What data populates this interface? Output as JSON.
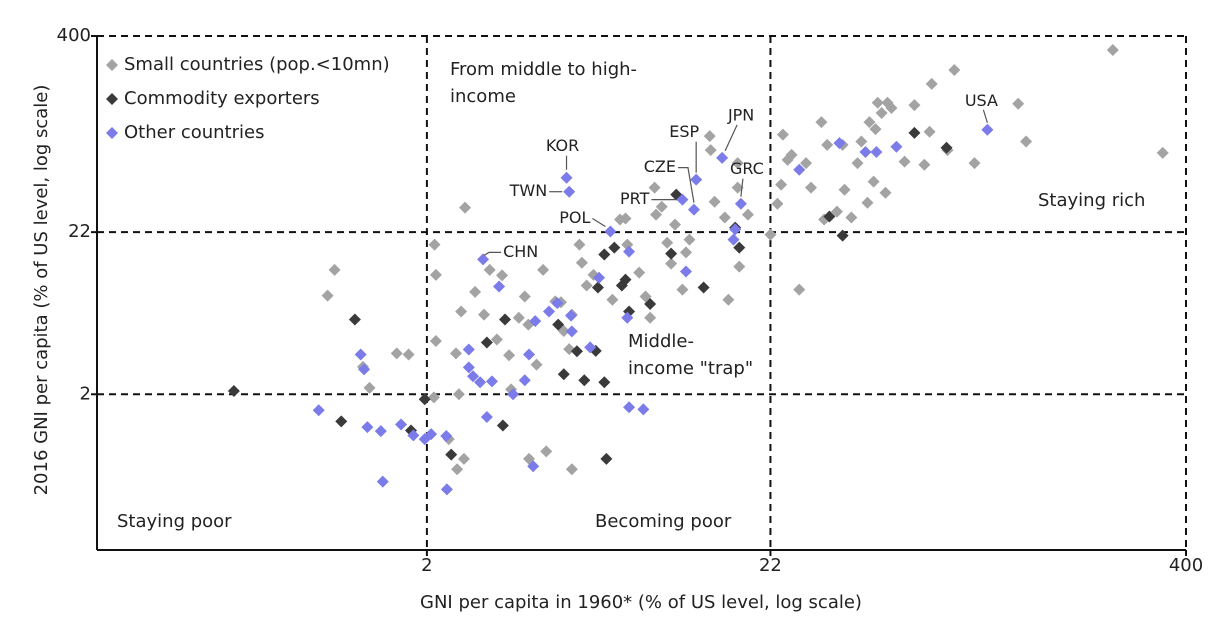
{
  "chart_data": {
    "type": "scatter",
    "xlabel": "GNI per capita in 1960* (% of US level, log scale)",
    "ylabel": "2016 GNI per capita (% of US level, log scale)",
    "xlim": [
      0.2,
      400
    ],
    "ylim": [
      0.2,
      400
    ],
    "xticks": [
      2,
      22,
      400
    ],
    "yticks": [
      2,
      22,
      400
    ],
    "xscale": "log",
    "yscale": "log",
    "grid": true,
    "legend": "upper left",
    "annotations": [
      [
        "From middle to high-",
        "income"
      ],
      [
        "Middle-",
        "income \"trap\""
      ],
      [
        "Staying rich"
      ],
      [
        "Staying poor"
      ],
      [
        "Becoming poor"
      ]
    ],
    "series": [
      {
        "name": "Small countries (pop.<10mn)",
        "color": "#a3a3a3",
        "x": [
          1.05,
          1.0,
          1.28,
          1.34,
          1.62,
          1.76,
          2.13,
          2.11,
          2.13,
          2.61,
          2.45,
          2.54,
          2.8,
          2.98,
          3.1,
          3.38,
          3.26,
          3.55,
          3.6,
          3.8,
          3.96,
          4.06,
          4.5,
          4.9,
          5.1,
          5.2,
          5.4,
          5.5,
          5.8,
          5.9,
          6.1,
          6.4,
          6.9,
          7.3,
          7.7,
          8.0,
          8.1,
          8.8,
          9.2,
          9.5,
          9.8,
          9.9,
          10.3,
          10.7,
          11.0,
          11.3,
          11.9,
          12.2,
          12.5,
          14.4,
          14.5,
          14.9,
          16.0,
          16.4,
          17.5,
          17.5,
          17.7,
          18.8,
          22,
          23.1,
          23.7,
          24.0,
          24.8,
          25.5,
          26.9,
          28.2,
          29.2,
          31.4,
          32,
          32.7,
          35,
          36.4,
          36.9,
          38.7,
          40.4,
          41.5,
          43.3,
          43.9,
          45.2,
          45.8,
          46.5,
          47.8,
          49.1,
          49.8,
          51.2,
          56.1,
          60.1,
          64.4,
          66.8,
          67.8,
          75.7,
          79.4,
          91.4,
          124,
          131,
          240,
          340,
          2.1,
          2.5,
          2.59,
          2.47,
          2.33,
          4.08,
          4.6,
          5.5,
          4.3
        ],
        "values": [
          12.6,
          8.6,
          3.0,
          2.2,
          3.66,
          3.6,
          4.4,
          18.3,
          11.7,
          31.6,
          3.66,
          6.8,
          9.1,
          6.5,
          12.6,
          11.6,
          4.5,
          3.56,
          2.15,
          6.2,
          8.5,
          5.6,
          12.6,
          7.9,
          7.8,
          5.1,
          3.9,
          6.5,
          18.3,
          14.0,
          10,
          11.7,
          15.8,
          8.1,
          26.5,
          26.9,
          18.3,
          12.1,
          8.5,
          6.2,
          42.5,
          28.5,
          32,
          18.8,
          13.8,
          24.6,
          9.4,
          16.3,
          19.7,
          91,
          74,
          34.5,
          27.3,
          8.1,
          61,
          42.5,
          13.2,
          28.5,
          21.2,
          33.5,
          44.4,
          93,
          64,
          69,
          9.4,
          61,
          42.5,
          112,
          26.5,
          80,
          29.8,
          80,
          41.2,
          27.3,
          61,
          84,
          34,
          112,
          46.4,
          101,
          149,
          128,
          39.4,
          149,
          138,
          62.4,
          144,
          59.6,
          97,
          197,
          74,
          242,
          61,
          147,
          84,
          325,
          71,
          1.91,
          2.0,
          0.77,
          0.66,
          1.03,
          0.77,
          0.86,
          0.66,
          3.1
        ]
      },
      {
        "name": "Commodity exporters",
        "color": "#3a3a3a",
        "x": [
          0.52,
          1.1,
          1.21,
          1.79,
          1.97,
          2.37,
          3.04,
          3.4,
          3.45,
          5.2,
          5.0,
          5.7,
          6.0,
          6.5,
          6.6,
          6.9,
          6.9,
          7.0,
          7.4,
          7.8,
          8.0,
          8.2,
          9.5,
          11.0,
          11.4,
          13.8,
          17.2,
          17.7,
          33.2,
          36.4,
          60.1,
          75.2
        ],
        "values": [
          2.1,
          1.34,
          6.05,
          1.17,
          1.86,
          0.82,
          4.3,
          1.26,
          6.05,
          2.69,
          5.6,
          3.78,
          2.46,
          3.8,
          9.7,
          15.8,
          2.39,
          0.77,
          17.5,
          10,
          10.9,
          6.8,
          7.6,
          16.0,
          38.3,
          9.7,
          23.5,
          17.5,
          27.7,
          20.9,
          95.5,
          76.6
        ]
      },
      {
        "name": "Other countries",
        "color": "#7b7bea",
        "x": [
          0.94,
          1.26,
          1.29,
          1.32,
          1.45,
          1.67,
          1.47,
          1.82,
          1.97,
          2.06,
          2.29,
          2.3,
          2.68,
          2.68,
          2.76,
          2.9,
          3.15,
          3.04,
          3.65,
          3.96,
          4.08,
          4.26,
          4.69,
          4.97,
          5.47,
          5.5,
          6.25,
          6.65,
          8.1,
          8.2,
          9.06,
          4.2,
          3.31,
          8.2,
          12.2,
          17.0,
          17.2,
          26.9,
          35.6,
          42.7,
          46.1,
          53,
          5.3,
          5.4,
          7.2,
          11.9,
          12.9,
          13.1,
          15.7,
          17.9,
          100,
          2.96
        ],
        "values": [
          1.58,
          3.6,
          2.89,
          1.23,
          1.16,
          1.28,
          0.55,
          1.09,
          1.03,
          1.11,
          1.08,
          0.49,
          3.88,
          2.98,
          2.61,
          2.39,
          2.42,
          1.43,
          2.0,
          2.46,
          3.6,
          5.9,
          6.8,
          7.7,
          6.4,
          5.07,
          4.0,
          11.2,
          6.2,
          1.65,
          1.6,
          0.69,
          9.85,
          16.5,
          12.3,
          19.7,
          22.9,
          55.3,
          82,
          72,
          72,
          77.8,
          49.2,
          40,
          22.2,
          35.6,
          30.7,
          47.8,
          66,
          33.5,
          100,
          14.7
        ],
        "labels": [
          null,
          null,
          null,
          null,
          null,
          null,
          null,
          null,
          null,
          null,
          null,
          null,
          null,
          null,
          null,
          null,
          null,
          null,
          null,
          null,
          null,
          null,
          null,
          null,
          null,
          null,
          null,
          null,
          null,
          null,
          null,
          null,
          null,
          null,
          null,
          null,
          null,
          null,
          null,
          null,
          null,
          null,
          "KOR",
          "TWN",
          "POL",
          "PRT",
          "CZE",
          "ESP",
          "JPN",
          "GRC",
          "USA",
          "CHN"
        ]
      }
    ]
  }
}
